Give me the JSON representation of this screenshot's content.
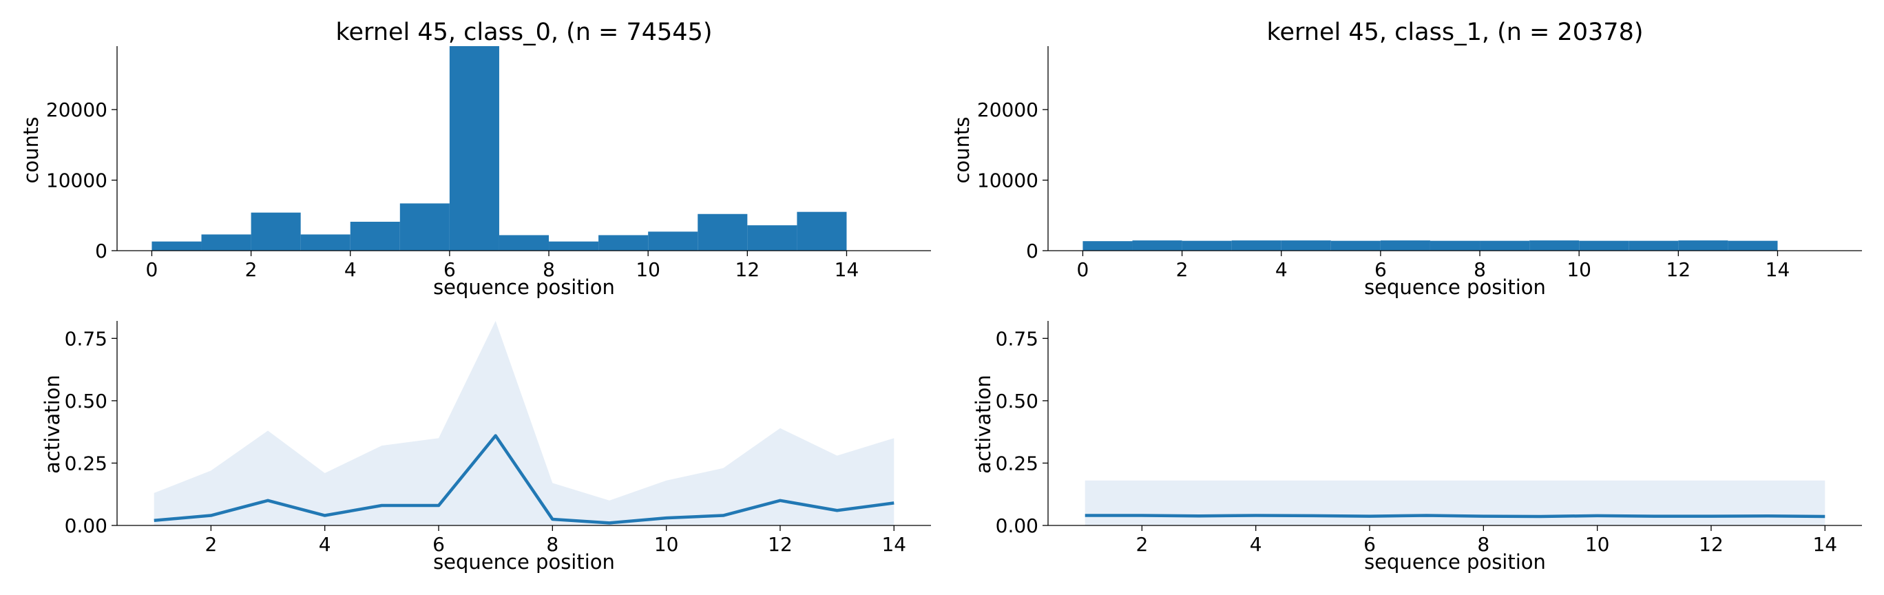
{
  "colors": {
    "bar": "#2178b4",
    "line": "#2178b4",
    "band": "#e6eef7",
    "axis": "#000000"
  },
  "chart_data": [
    {
      "type": "bar",
      "panel": "top-left",
      "title": "kernel 45, class_0, (n = 74545)",
      "xlabel": "sequence position",
      "ylabel": "counts",
      "bin_edges": [
        0,
        1,
        2,
        3,
        4,
        5,
        6,
        7,
        8,
        9,
        10,
        11,
        12,
        13,
        14
      ],
      "values": [
        1300,
        2300,
        5400,
        2300,
        4100,
        6700,
        29000,
        2200,
        1300,
        2200,
        2700,
        5200,
        3600,
        5500
      ],
      "xlim": [
        -0.7,
        15.7
      ],
      "ylim": [
        0,
        29000
      ],
      "xticks": [
        0,
        2,
        4,
        6,
        8,
        10,
        12,
        14
      ],
      "yticks": [
        0,
        10000,
        20000
      ]
    },
    {
      "type": "bar",
      "panel": "top-right",
      "title": "kernel 45, class_1, (n = 20378)",
      "xlabel": "sequence position",
      "ylabel": "counts",
      "bin_edges": [
        0,
        1,
        2,
        3,
        4,
        5,
        6,
        7,
        8,
        9,
        10,
        11,
        12,
        13,
        14
      ],
      "values": [
        1350,
        1450,
        1400,
        1450,
        1450,
        1400,
        1450,
        1400,
        1400,
        1450,
        1400,
        1400,
        1450,
        1400
      ],
      "xlim": [
        -0.7,
        15.7
      ],
      "ylim": [
        0,
        29000
      ],
      "xticks": [
        0,
        2,
        4,
        6,
        8,
        10,
        12,
        14
      ],
      "yticks": [
        0,
        10000,
        20000
      ]
    },
    {
      "type": "line",
      "panel": "bottom-left",
      "xlabel": "sequence position",
      "ylabel": "activation",
      "x": [
        1,
        2,
        3,
        4,
        5,
        6,
        7,
        8,
        9,
        10,
        11,
        12,
        13,
        14
      ],
      "mean": [
        0.02,
        0.04,
        0.1,
        0.04,
        0.08,
        0.08,
        0.36,
        0.025,
        0.01,
        0.03,
        0.04,
        0.1,
        0.06,
        0.09
      ],
      "upper": [
        0.13,
        0.22,
        0.38,
        0.21,
        0.32,
        0.35,
        0.82,
        0.17,
        0.1,
        0.18,
        0.23,
        0.39,
        0.28,
        0.35
      ],
      "lower": [
        0,
        0,
        0,
        0,
        0,
        0,
        0,
        0,
        0,
        0,
        0,
        0,
        0,
        0
      ],
      "xlim": [
        0.35,
        14.65
      ],
      "ylim": [
        0,
        0.82
      ],
      "xticks": [
        2,
        4,
        6,
        8,
        10,
        12,
        14
      ],
      "yticks": [
        0,
        0.25,
        0.5,
        0.75
      ],
      "ytick_labels": [
        "0.00",
        "0.25",
        "0.50",
        "0.75"
      ]
    },
    {
      "type": "line",
      "panel": "bottom-right",
      "xlabel": "sequence position",
      "ylabel": "activation",
      "x": [
        1,
        2,
        3,
        4,
        5,
        6,
        7,
        8,
        9,
        10,
        11,
        12,
        13,
        14
      ],
      "mean": [
        0.04,
        0.04,
        0.038,
        0.04,
        0.039,
        0.037,
        0.04,
        0.037,
        0.036,
        0.039,
        0.037,
        0.037,
        0.038,
        0.036
      ],
      "upper": [
        0.18,
        0.18,
        0.18,
        0.18,
        0.18,
        0.18,
        0.18,
        0.18,
        0.18,
        0.18,
        0.18,
        0.18,
        0.18,
        0.18
      ],
      "lower": [
        0,
        0,
        0,
        0,
        0,
        0,
        0,
        0,
        0,
        0,
        0,
        0,
        0,
        0
      ],
      "xlim": [
        0.35,
        14.65
      ],
      "ylim": [
        0,
        0.82
      ],
      "xticks": [
        2,
        4,
        6,
        8,
        10,
        12,
        14
      ],
      "yticks": [
        0,
        0.25,
        0.5,
        0.75
      ],
      "ytick_labels": [
        "0.00",
        "0.25",
        "0.50",
        "0.75"
      ]
    }
  ]
}
